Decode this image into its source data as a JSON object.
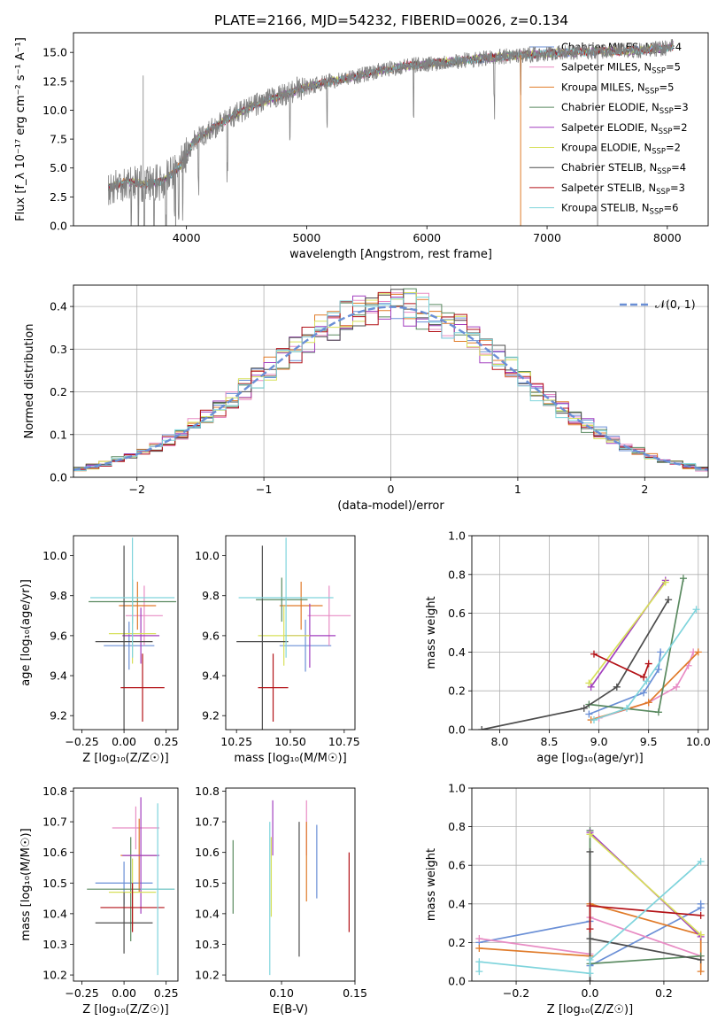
{
  "chart_data": [
    {
      "id": "spectrum",
      "type": "line",
      "title": "PLATE=2166, MJD=54232, FIBERID=0026, z=0.134",
      "xlabel": "wavelength [Angstrom, rest frame]",
      "ylabel": "Flux [f_λ 10⁻¹⁷ erg cm⁻² s⁻¹ A⁻¹]",
      "xlim": [
        3060,
        8340
      ],
      "ylim": [
        0,
        16.7
      ],
      "xticks": [
        "4000",
        "5000",
        "6000",
        "7000",
        "8000"
      ],
      "xtick_values": [
        4000,
        5000,
        6000,
        7000,
        8000
      ],
      "yticks": [
        "0.0",
        "2.5",
        "5.0",
        "7.5",
        "10.0",
        "12.5",
        "15.0"
      ],
      "ytick_values": [
        0,
        2.5,
        5,
        7.5,
        10,
        12.5,
        15
      ],
      "grid": false,
      "legend_position": "right",
      "data_trend": {
        "x": [
          3350,
          3500,
          3650,
          3800,
          3950,
          4050,
          4200,
          4400,
          4600,
          4800,
          5000,
          5200,
          5400,
          5600,
          5800,
          6000,
          6200,
          6400,
          6600,
          6800,
          7000,
          7200,
          7400,
          7600,
          7800,
          8000,
          8050
        ],
        "y": [
          3.3,
          3.8,
          3.6,
          3.8,
          5.2,
          7.2,
          8.3,
          9.6,
          10.6,
          11.3,
          12.0,
          12.5,
          12.9,
          13.4,
          13.8,
          14.0,
          14.2,
          14.4,
          14.6,
          14.8,
          14.9,
          15.0,
          15.1,
          15.1,
          15.2,
          15.4,
          15.6
        ]
      },
      "series": [
        {
          "name": "Chabrier MILES, N_SSP=4",
          "label_main": "Chabrier MILES, N",
          "label_sub": "SSP",
          "label_tail": "=4",
          "color": "#6a8fd6"
        },
        {
          "name": "Salpeter MILES, N_SSP=5",
          "label_main": "Salpeter MILES, N",
          "label_sub": "SSP",
          "label_tail": "=5",
          "color": "#e88cc4"
        },
        {
          "name": "Kroupa MILES, N_SSP=5",
          "label_main": "Kroupa MILES, N",
          "label_sub": "SSP",
          "label_tail": "=5",
          "color": "#e07b2a"
        },
        {
          "name": "Chabrier ELODIE, N_SSP=3",
          "label_main": "Chabrier ELODIE, N",
          "label_sub": "SSP",
          "label_tail": "=3",
          "color": "#5a8a60"
        },
        {
          "name": "Salpeter ELODIE, N_SSP=2",
          "label_main": "Salpeter ELODIE, N",
          "label_sub": "SSP",
          "label_tail": "=2",
          "color": "#a23fbf"
        },
        {
          "name": "Kroupa ELODIE, N_SSP=2",
          "label_main": "Kroupa ELODIE, N",
          "label_sub": "SSP",
          "label_tail": "=2",
          "color": "#d7e05a"
        },
        {
          "name": "Chabrier STELIB, N_SSP=4",
          "label_main": "Chabrier STELIB, N",
          "label_sub": "SSP",
          "label_tail": "=4",
          "color": "#4d4d4d"
        },
        {
          "name": "Salpeter STELIB, N_SSP=3",
          "label_main": "Salpeter STELIB, N",
          "label_sub": "SSP",
          "label_tail": "=3",
          "color": "#b31217"
        },
        {
          "name": "Kroupa STELIB, N_SSP=6",
          "label_main": "Kroupa STELIB, N",
          "label_sub": "SSP",
          "label_tail": "=6",
          "color": "#7fd4dc"
        }
      ]
    },
    {
      "id": "residuals",
      "type": "line",
      "xlabel": "(data-model)/error",
      "ylabel": "Normed distribution",
      "xlim": [
        -2.5,
        2.5
      ],
      "ylim": [
        0,
        0.45
      ],
      "xticks": [
        "−2",
        "−1",
        "0",
        "1",
        "2"
      ],
      "xtick_values": [
        -2,
        -1,
        0,
        1,
        2
      ],
      "yticks": [
        "0.0",
        "0.1",
        "0.2",
        "0.3",
        "0.4"
      ],
      "ytick_values": [
        0,
        0.1,
        0.2,
        0.3,
        0.4
      ],
      "grid": true,
      "legend_position": "top-right",
      "legend": [
        "𝒩(0, 1)"
      ],
      "reference_curve": {
        "name": "𝒩(0, 1)",
        "mean": 0,
        "sigma": 1,
        "color": "#6a8fd6"
      },
      "histogram_bin_width": 0.1,
      "histogram_range": [
        -2.5,
        2.5
      ]
    },
    {
      "id": "age-vs-Z",
      "type": "scatter",
      "xlabel": "Z [log₁₀(Z/Z☉)]",
      "ylabel": "age  [log₁₀(age/yr)]",
      "xlim": [
        -0.3,
        0.32
      ],
      "ylim": [
        9.13,
        10.1
      ],
      "xticks": [
        "−0.25",
        "0.00",
        "0.25"
      ],
      "xtick_values": [
        -0.25,
        0,
        0.25
      ],
      "yticks": [
        "9.2",
        "9.4",
        "9.6",
        "9.8",
        "10.0"
      ],
      "ytick_values": [
        9.2,
        9.4,
        9.6,
        9.8,
        10.0
      ],
      "points": [
        {
          "x": 0.03,
          "xerr": 0.15,
          "y": 9.55,
          "yerr": 0.12,
          "color": "#6a8fd6"
        },
        {
          "x": 0.12,
          "xerr": 0.11,
          "y": 9.7,
          "yerr": 0.15,
          "color": "#e88cc4"
        },
        {
          "x": 0.08,
          "xerr": 0.11,
          "y": 9.75,
          "yerr": 0.12,
          "color": "#e07b2a"
        },
        {
          "x": 0.05,
          "xerr": 0.26,
          "y": 9.77,
          "yerr": 0.11,
          "color": "#5a8a60"
        },
        {
          "x": 0.1,
          "xerr": 0.11,
          "y": 9.6,
          "yerr": 0.14,
          "color": "#a23fbf"
        },
        {
          "x": 0.05,
          "xerr": 0.14,
          "y": 9.61,
          "yerr": 0.15,
          "color": "#d7e05a"
        },
        {
          "x": 0.0,
          "xerr": 0.17,
          "y": 9.57,
          "yerr": 0.48,
          "color": "#4d4d4d"
        },
        {
          "x": 0.11,
          "xerr": 0.13,
          "y": 9.34,
          "yerr": 0.17,
          "color": "#b31217"
        },
        {
          "x": 0.05,
          "xerr": 0.25,
          "y": 9.79,
          "yerr": 0.3,
          "color": "#7fd4dc"
        }
      ]
    },
    {
      "id": "age-vs-mass",
      "type": "scatter",
      "xlabel": "mass [log₁₀(M/M☉)]",
      "ylabel": "",
      "xlim": [
        10.2,
        10.8
      ],
      "ylim": [
        9.13,
        10.1
      ],
      "xticks": [
        "10.25",
        "10.50",
        "10.75"
      ],
      "xtick_values": [
        10.25,
        10.5,
        10.75
      ],
      "yticks": [
        "9.2",
        "9.4",
        "9.6",
        "9.8",
        "10.0"
      ],
      "ytick_values": [
        9.2,
        9.4,
        9.6,
        9.8,
        10.0
      ],
      "points": [
        {
          "x": 10.57,
          "xerr": 0.12,
          "y": 9.55,
          "yerr": 0.13,
          "color": "#6a8fd6"
        },
        {
          "x": 10.68,
          "xerr": 0.1,
          "y": 9.7,
          "yerr": 0.15,
          "color": "#e88cc4"
        },
        {
          "x": 10.55,
          "xerr": 0.1,
          "y": 9.75,
          "yerr": 0.12,
          "color": "#e07b2a"
        },
        {
          "x": 10.46,
          "xerr": 0.12,
          "y": 9.78,
          "yerr": 0.11,
          "color": "#5a8a60"
        },
        {
          "x": 10.59,
          "xerr": 0.12,
          "y": 9.6,
          "yerr": 0.16,
          "color": "#a23fbf"
        },
        {
          "x": 10.47,
          "xerr": 0.12,
          "y": 9.6,
          "yerr": 0.15,
          "color": "#d7e05a"
        },
        {
          "x": 10.37,
          "xerr": 0.12,
          "y": 9.57,
          "yerr": 0.48,
          "color": "#4d4d4d"
        },
        {
          "x": 10.42,
          "xerr": 0.07,
          "y": 9.34,
          "yerr": 0.17,
          "color": "#b31217"
        },
        {
          "x": 10.48,
          "xerr": 0.22,
          "y": 9.79,
          "yerr": 0.3,
          "color": "#7fd4dc"
        }
      ]
    },
    {
      "id": "weight-vs-age",
      "type": "line",
      "xlabel": "age  [log₁₀(age/yr)]",
      "ylabel": "mass weight",
      "xlim": [
        7.72,
        10.1
      ],
      "ylim": [
        0,
        1
      ],
      "xticks": [
        "8.0",
        "8.5",
        "9.0",
        "9.5",
        "10.0"
      ],
      "xtick_values": [
        8,
        8.5,
        9,
        9.5,
        10
      ],
      "yticks": [
        "0.0",
        "0.2",
        "0.4",
        "0.6",
        "0.8",
        "1.0"
      ],
      "ytick_values": [
        0,
        0.2,
        0.4,
        0.6,
        0.8,
        1
      ],
      "grid": true,
      "series": [
        {
          "color": "#6a8fd6",
          "x": [
            8.9,
            9.45,
            9.6,
            9.62
          ],
          "y": [
            0.08,
            0.19,
            0.31,
            0.4
          ]
        },
        {
          "color": "#e88cc4",
          "x": [
            9.0,
            9.5,
            9.78,
            9.9,
            9.95
          ],
          "y": [
            0.06,
            0.14,
            0.22,
            0.33,
            0.4
          ]
        },
        {
          "color": "#e07b2a",
          "x": [
            8.92,
            9.5,
            10.0
          ],
          "y": [
            0.05,
            0.14,
            0.4
          ]
        },
        {
          "color": "#5a8a60",
          "x": [
            8.9,
            9.6,
            9.85
          ],
          "y": [
            0.13,
            0.09,
            0.78
          ]
        },
        {
          "color": "#a23fbf",
          "x": [
            8.92,
            9.67
          ],
          "y": [
            0.22,
            0.77
          ]
        },
        {
          "color": "#d7e05a",
          "x": [
            8.9,
            9.67
          ],
          "y": [
            0.24,
            0.76
          ]
        },
        {
          "color": "#4d4d4d",
          "x": [
            7.82,
            8.85,
            9.18,
            9.7
          ],
          "y": [
            0.0,
            0.11,
            0.22,
            0.67
          ]
        },
        {
          "color": "#b31217",
          "x": [
            8.95,
            9.45,
            9.5
          ],
          "y": [
            0.39,
            0.27,
            0.34
          ]
        },
        {
          "color": "#7fd4dc",
          "x": [
            8.95,
            9.28,
            9.48,
            9.98
          ],
          "y": [
            0.05,
            0.11,
            0.25,
            0.62
          ]
        }
      ]
    },
    {
      "id": "mass-vs-Z",
      "type": "scatter",
      "xlabel": "Z [log₁₀(Z/Z☉)]",
      "ylabel": "mass [log₁₀(M/M☉)]",
      "xlim": [
        -0.3,
        0.32
      ],
      "ylim": [
        10.18,
        10.81
      ],
      "xticks": [
        "−0.25",
        "0.00",
        "0.25"
      ],
      "xtick_values": [
        -0.25,
        0,
        0.25
      ],
      "yticks": [
        "10.2",
        "10.3",
        "10.4",
        "10.5",
        "10.6",
        "10.7",
        "10.8"
      ],
      "ytick_values": [
        10.2,
        10.3,
        10.4,
        10.5,
        10.6,
        10.7,
        10.8
      ],
      "points": [
        {
          "x": 0.0,
          "xerr": 0.17,
          "y": 10.5,
          "yerr": 0.07,
          "color": "#6a8fd6"
        },
        {
          "x": 0.07,
          "xerr": 0.14,
          "y": 10.68,
          "yerr": 0.07,
          "color": "#e88cc4"
        },
        {
          "x": 0.09,
          "xerr": 0.11,
          "y": 10.59,
          "yerr": 0.12,
          "color": "#e07b2a"
        },
        {
          "x": 0.04,
          "xerr": 0.26,
          "y": 10.48,
          "yerr": 0.17,
          "color": "#5a8a60"
        },
        {
          "x": 0.1,
          "xerr": 0.11,
          "y": 10.59,
          "yerr": 0.19,
          "color": "#a23fbf"
        },
        {
          "x": 0.05,
          "xerr": 0.14,
          "y": 10.47,
          "yerr": 0.11,
          "color": "#d7e05a"
        },
        {
          "x": 0.0,
          "xerr": 0.17,
          "y": 10.37,
          "yerr": 0.1,
          "color": "#4d4d4d"
        },
        {
          "x": 0.05,
          "xerr": 0.19,
          "y": 10.42,
          "yerr": 0.08,
          "color": "#b31217"
        },
        {
          "x": 0.2,
          "xerr": 0.1,
          "y": 10.48,
          "yerr": 0.28,
          "color": "#7fd4dc"
        }
      ]
    },
    {
      "id": "mass-vs-EBV",
      "type": "scatter",
      "xlabel": "E(B-V)",
      "ylabel": "",
      "xlim": [
        0.062,
        0.15
      ],
      "ylim": [
        10.18,
        10.81
      ],
      "xticks": [
        "0.10",
        "0.15"
      ],
      "xtick_values": [
        0.1,
        0.15
      ],
      "yticks": [
        "10.2",
        "10.3",
        "10.4",
        "10.5",
        "10.6",
        "10.7",
        "10.8"
      ],
      "ytick_values": [
        10.2,
        10.3,
        10.4,
        10.5,
        10.6,
        10.7,
        10.8
      ],
      "points": [
        {
          "x": 0.124,
          "y": 10.57,
          "yerr": 0.12,
          "color": "#6a8fd6"
        },
        {
          "x": 0.117,
          "y": 10.68,
          "yerr": 0.09,
          "color": "#e88cc4"
        },
        {
          "x": 0.117,
          "y": 10.57,
          "yerr": 0.13,
          "color": "#e07b2a"
        },
        {
          "x": 0.067,
          "y": 10.52,
          "yerr": 0.12,
          "color": "#5a8a60"
        },
        {
          "x": 0.094,
          "y": 10.68,
          "yerr": 0.09,
          "color": "#a23fbf"
        },
        {
          "x": 0.093,
          "y": 10.52,
          "yerr": 0.13,
          "color": "#d7e05a"
        },
        {
          "x": 0.112,
          "y": 10.48,
          "yerr": 0.22,
          "color": "#4d4d4d"
        },
        {
          "x": 0.146,
          "y": 10.47,
          "yerr": 0.13,
          "color": "#b31217"
        },
        {
          "x": 0.092,
          "y": 10.45,
          "yerr": 0.25,
          "color": "#7fd4dc"
        }
      ]
    },
    {
      "id": "weight-vs-Z",
      "type": "line",
      "xlabel": "Z [log₁₀(Z/Z☉)]",
      "ylabel": "mass weight",
      "xlim": [
        -0.32,
        0.32
      ],
      "ylim": [
        0,
        1
      ],
      "xticks": [
        "−0.2",
        "0.0",
        "0.2"
      ],
      "xtick_values": [
        -0.2,
        0,
        0.2
      ],
      "yticks": [
        "0.0",
        "0.2",
        "0.4",
        "0.6",
        "0.8",
        "1.0"
      ],
      "ytick_values": [
        0,
        0.2,
        0.4,
        0.6,
        0.8,
        1
      ],
      "grid": true,
      "series": [
        {
          "color": "#6a8fd6",
          "x": [
            -0.3,
            0.0,
            0.0,
            0.3,
            0.3
          ],
          "y": [
            0.2,
            0.31,
            0.08,
            0.38,
            0.4
          ]
        },
        {
          "color": "#e88cc4",
          "x": [
            -0.3,
            0.0,
            0.0,
            0.3
          ],
          "y": [
            0.22,
            0.14,
            0.33,
            0.13
          ]
        },
        {
          "color": "#e07b2a",
          "x": [
            -0.3,
            0.0,
            0.0,
            0.3,
            0.3
          ],
          "y": [
            0.17,
            0.13,
            0.4,
            0.24,
            0.05
          ]
        },
        {
          "color": "#5a8a60",
          "x": [
            0.0,
            0.0,
            0.3
          ],
          "y": [
            0.78,
            0.09,
            0.13
          ]
        },
        {
          "color": "#a23fbf",
          "x": [
            0.0,
            0.3
          ],
          "y": [
            0.77,
            0.23
          ]
        },
        {
          "color": "#d7e05a",
          "x": [
            0.0,
            0.3
          ],
          "y": [
            0.76,
            0.24
          ]
        },
        {
          "color": "#4d4d4d",
          "x": [
            0.0,
            0.0,
            0.0,
            0.3
          ],
          "y": [
            0.0,
            0.67,
            0.22,
            0.11
          ]
        },
        {
          "color": "#b31217",
          "x": [
            0.0,
            0.0,
            0.3
          ],
          "y": [
            0.27,
            0.39,
            0.34
          ]
        },
        {
          "color": "#7fd4dc",
          "x": [
            -0.3,
            -0.3,
            0.0,
            0.0,
            0.3
          ],
          "y": [
            0.05,
            0.1,
            0.04,
            0.11,
            0.62
          ]
        }
      ]
    }
  ]
}
